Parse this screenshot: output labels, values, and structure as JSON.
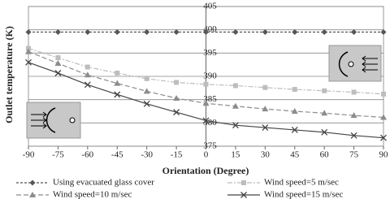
{
  "chart_data": {
    "type": "line",
    "x_label": "Orientation (Degree)",
    "y_label": "Outlet temperature (K)",
    "x": [
      -90,
      -75,
      -60,
      -45,
      -30,
      -15,
      0,
      15,
      30,
      45,
      60,
      75,
      90
    ],
    "xlim": [
      -90,
      90
    ],
    "xticks": [
      -90,
      -75,
      -60,
      -45,
      -30,
      -15,
      0,
      15,
      30,
      45,
      60,
      75,
      90
    ],
    "ylim": [
      375,
      405
    ],
    "yticks": [
      375,
      380,
      385,
      390,
      395,
      400,
      405
    ],
    "grid": true,
    "series": [
      {
        "name": "Using evacuated glass cover",
        "color": "#555555",
        "marker": "diamond",
        "dash": "3,2",
        "values": [
          399.5,
          399.5,
          399.5,
          399.5,
          399.5,
          399.5,
          399.5,
          399.5,
          399.5,
          399.5,
          399.5,
          399.5,
          399.5
        ]
      },
      {
        "name": "Wind speed=5 m/sec",
        "color": "#bdbdbd",
        "marker": "square",
        "dash": "6,2,2,2",
        "values": [
          396,
          394,
          392,
          390.7,
          389.5,
          388.7,
          388.3,
          388,
          387.6,
          387.2,
          386.9,
          386.6,
          386.2
        ]
      },
      {
        "name": "Wind speed=10 m/sec",
        "color": "#8c8c8c",
        "marker": "triangle",
        "dash": "6,3",
        "values": [
          395.3,
          392.8,
          390.3,
          388.5,
          386.8,
          385.3,
          384.2,
          383.6,
          383,
          382.5,
          382.1,
          381.6,
          381.2
        ]
      },
      {
        "name": "Wind speed=15 m/sec",
        "color": "#444444",
        "marker": "x",
        "dash": "",
        "values": [
          393,
          390.7,
          388.2,
          386.1,
          384.1,
          382.3,
          380.5,
          379.5,
          379,
          378.5,
          378,
          377.3,
          376.8
        ]
      }
    ]
  }
}
